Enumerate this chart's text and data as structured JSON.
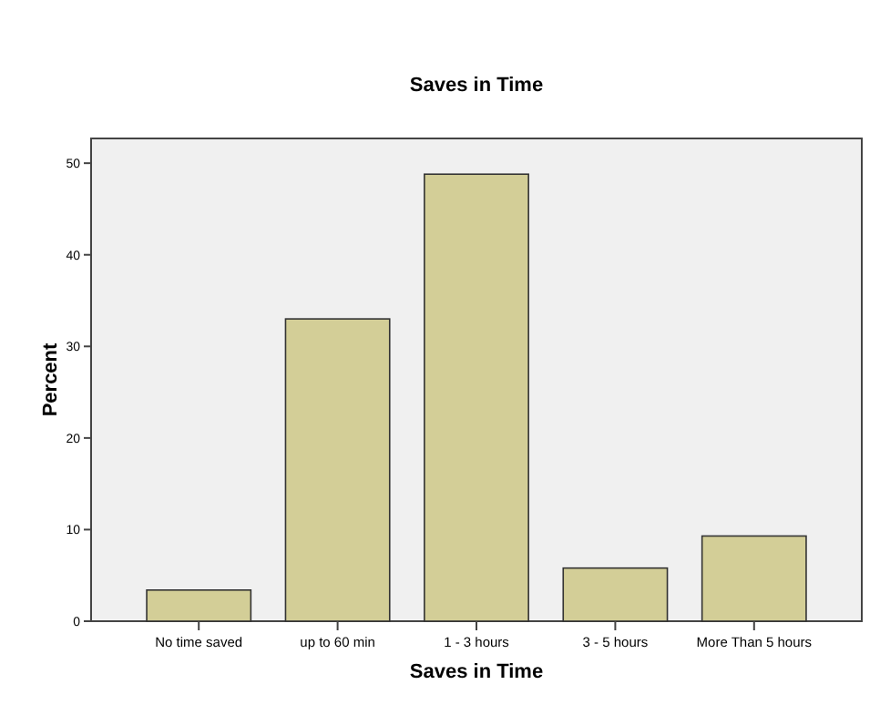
{
  "chart_data": {
    "type": "bar",
    "title": "Saves in Time",
    "xlabel": "Saves in Time",
    "ylabel": "Percent",
    "categories": [
      "No time saved",
      "up to 60 min",
      "1 - 3 hours",
      "3 - 5 hours",
      "More Than 5 hours"
    ],
    "values": [
      3.4,
      33.0,
      48.8,
      5.8,
      9.3
    ],
    "color": "#d3ce97",
    "ylim": [
      0,
      52.7
    ],
    "yticks": [
      0,
      10,
      20,
      30,
      40,
      50
    ],
    "grid": false
  }
}
